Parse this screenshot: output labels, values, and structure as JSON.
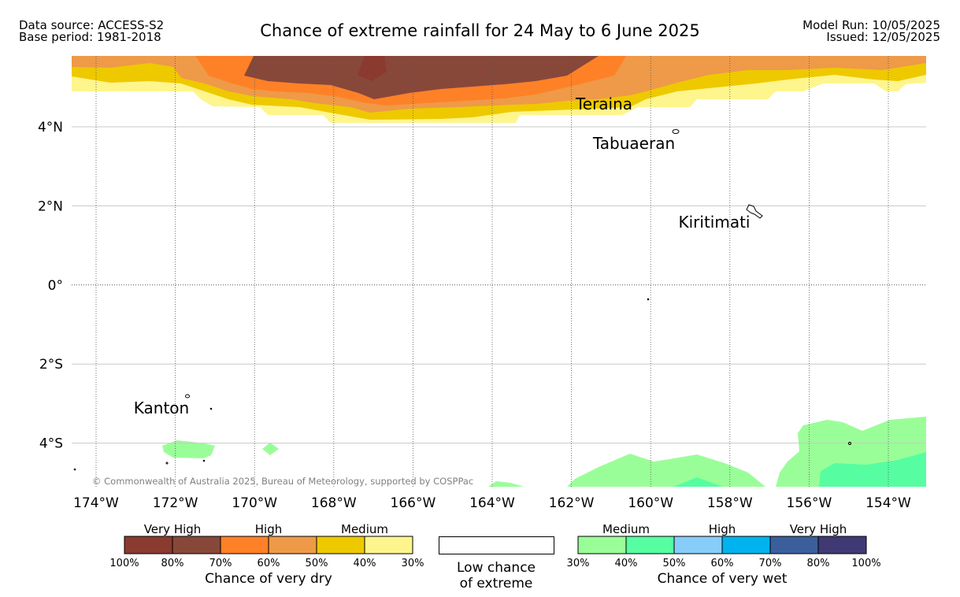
{
  "header": {
    "data_source": "Data source: ACCESS-S2",
    "base_period": "Base period: 1981-2018",
    "title": "Chance of extreme rainfall for 24 May to 6 June 2025",
    "model_run": "Model Run: 10/05/2025",
    "issued": "Issued: 12/05/2025"
  },
  "map": {
    "lon_labels": [
      "174°W",
      "172°W",
      "170°W",
      "168°W",
      "166°W",
      "164°W",
      "162°W",
      "160°W",
      "158°W",
      "156°W",
      "154°W"
    ],
    "lat_labels": [
      "4°N",
      "2°N",
      "0°",
      "2°S",
      "4°S"
    ],
    "places": {
      "teraina": "Teraina",
      "tabuaeran": "Tabuaeran",
      "kiritimati": "Kiritimati",
      "kanton": "Kanton"
    },
    "copyright": "© Commonwealth of Australia 2025, Bureau of Meteorology, supported by COSPPac"
  },
  "legend": {
    "dry": {
      "groups": [
        "Very High",
        "High",
        "Medium"
      ],
      "colors": [
        "#8b3a2f",
        "#87483a",
        "#fe8127",
        "#ee9a48",
        "#eec900",
        "#fef58d"
      ],
      "ticks": [
        "100%",
        "80%",
        "70%",
        "60%",
        "50%",
        "40%",
        "30%"
      ],
      "caption": "Chance of very dry"
    },
    "low": {
      "line1": "Low chance",
      "line2": "of extreme"
    },
    "wet": {
      "groups": [
        "Medium",
        "High",
        "Very High"
      ],
      "colors": [
        "#9afe98",
        "#56fea1",
        "#87cdfa",
        "#00b3ee",
        "#3a5f9c",
        "#403a74"
      ],
      "ticks": [
        "30%",
        "40%",
        "50%",
        "60%",
        "70%",
        "80%",
        "100%"
      ],
      "caption": "Chance of very wet"
    }
  }
}
